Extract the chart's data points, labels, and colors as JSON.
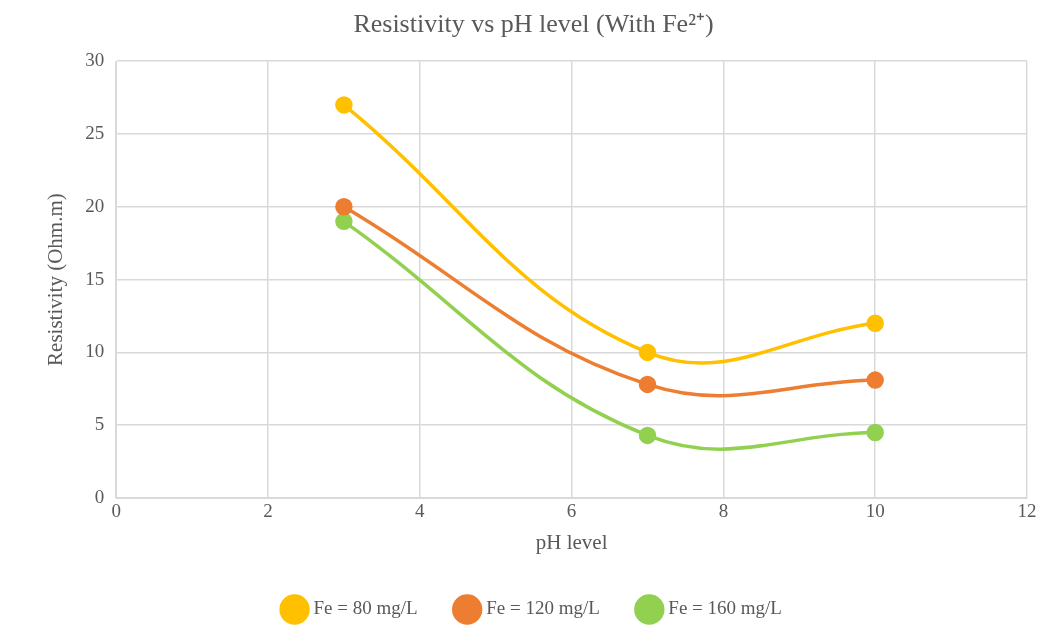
{
  "chart_data": {
    "type": "line",
    "title": "Resistivity vs pH level (With Fe²⁺)",
    "xlabel": "pH level",
    "ylabel": "Resistivity (Ohm.m)",
    "x": [
      3,
      7,
      10
    ],
    "series": [
      {
        "name": "Fe = 80 mg/L",
        "color": "#ffc000",
        "values": [
          27,
          10,
          12
        ]
      },
      {
        "name": "Fe = 120 mg/L",
        "color": "#ed7d31",
        "values": [
          20,
          7.8,
          8.1
        ]
      },
      {
        "name": "Fe = 160 mg/L",
        "color": "#92d050",
        "values": [
          19,
          4.3,
          4.5
        ]
      }
    ],
    "xlim": [
      0,
      12
    ],
    "xticks": [
      0,
      2,
      4,
      6,
      8,
      10,
      12
    ],
    "ylim": [
      0,
      30
    ],
    "yticks": [
      0,
      5,
      10,
      15,
      20,
      25,
      30
    ],
    "grid": true,
    "legend": "bottom",
    "marker": "circle",
    "line_style": "solid"
  }
}
